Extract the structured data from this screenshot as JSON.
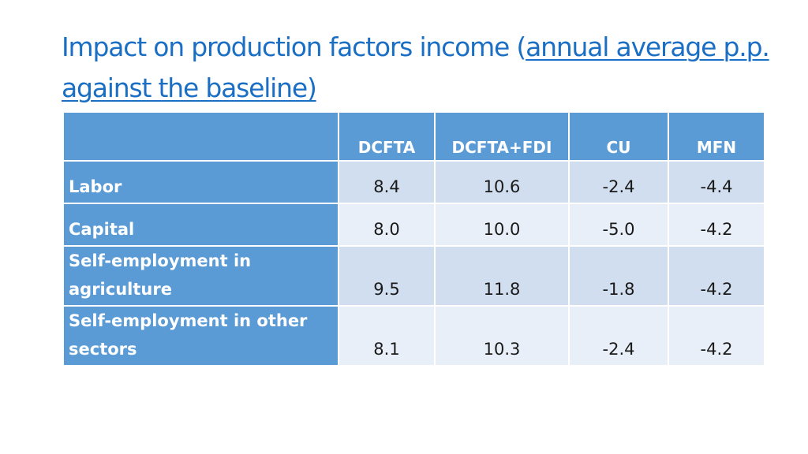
{
  "title": {
    "line_part1": "Impact on production factors income (",
    "line_part2": "annual average p.p. against the baseline)"
  },
  "table": {
    "headers": [
      "",
      "DCFTA",
      "DCFTA+FDI",
      "CU",
      "MFN"
    ],
    "rows": [
      {
        "label": "Labor",
        "values": [
          "8.4",
          "10.6",
          "-2.4",
          "-4.4"
        ]
      },
      {
        "label": "Capital",
        "values": [
          "8.0",
          "10.0",
          "-5.0",
          "-4.2"
        ]
      },
      {
        "label": "Self-employment in agriculture",
        "values": [
          "9.5",
          "11.8",
          "-1.8",
          "-4.2"
        ]
      },
      {
        "label": "Self-employment in other sectors",
        "values": [
          "8.1",
          "10.3",
          "-2.4",
          "-4.2"
        ]
      }
    ]
  },
  "colors": {
    "title_blue": "#1a6fc4",
    "header_blue": "#5b9bd5",
    "row_light": "#d1deef",
    "row_lighter": "#e9eff8"
  }
}
